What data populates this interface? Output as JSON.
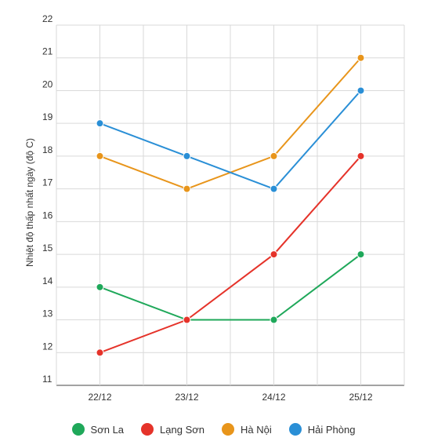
{
  "chart_data": {
    "type": "line",
    "title": "",
    "xlabel": "",
    "ylabel": "Nhiệt độ thấp nhất ngày (độ C)",
    "categories": [
      "22/12",
      "23/12",
      "24/12",
      "25/12"
    ],
    "ylim": [
      11,
      22
    ],
    "yticks": [
      11,
      12,
      13,
      14,
      15,
      16,
      17,
      18,
      19,
      20,
      21,
      22
    ],
    "grid": true,
    "legend_position": "bottom",
    "series": [
      {
        "name": "Sơn La",
        "color": "#1fa85a",
        "values": [
          14,
          13,
          13,
          15
        ]
      },
      {
        "name": "Lạng Sơn",
        "color": "#e5332a",
        "values": [
          12,
          13,
          15,
          18
        ]
      },
      {
        "name": "Hà Nội",
        "color": "#e8951b",
        "values": [
          18,
          17,
          18,
          21
        ]
      },
      {
        "name": "Hải Phòng",
        "color": "#2a8fd6",
        "values": [
          19,
          18,
          17,
          20
        ]
      }
    ]
  }
}
